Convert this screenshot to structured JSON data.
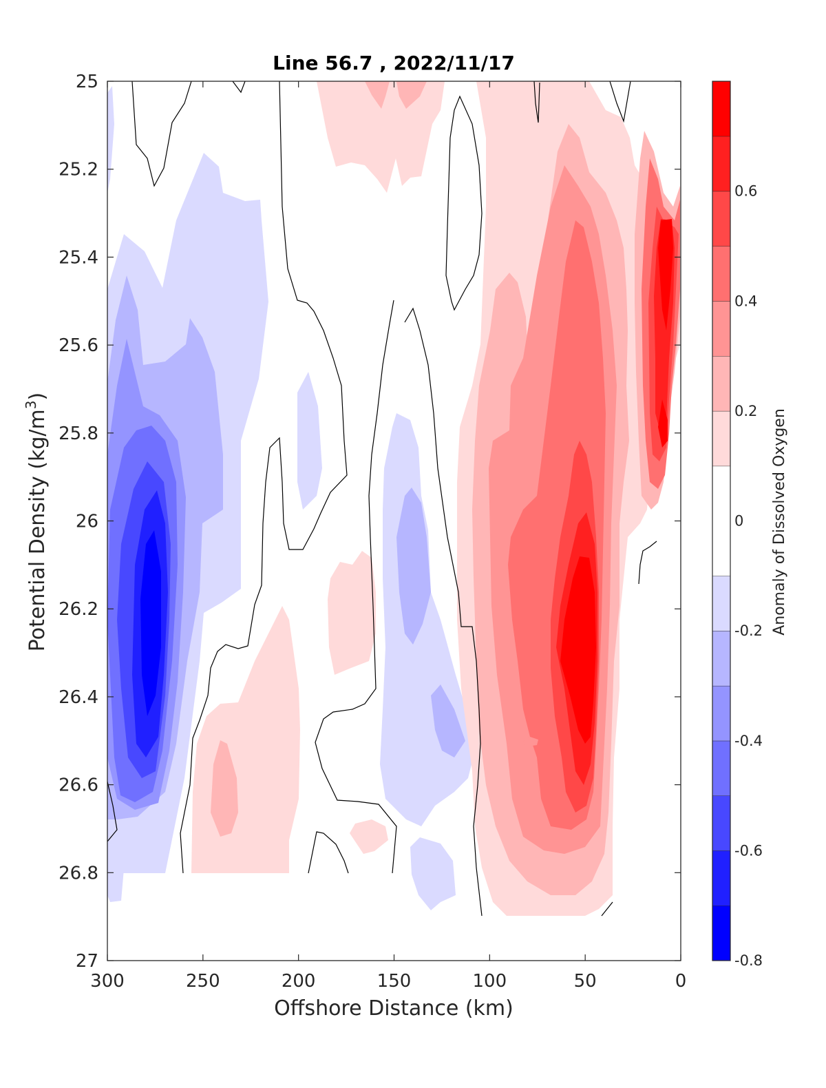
{
  "chart_data": {
    "type": "heatmap",
    "subtype": "filled-contour",
    "title": "Line 56.7 , 2022/11/17",
    "xlabel": "Offshore Distance (km)",
    "ylabel": "Potential Density (kg/m",
    "ylabel_sup": "3",
    "ylabel_close": ")",
    "colorbar_label": "Anomaly of Dissolved Oxygen",
    "xlim": [
      300,
      0
    ],
    "ylim": [
      25,
      27
    ],
    "x_reversed": true,
    "y_reversed": true,
    "x_ticks": [
      "300",
      "250",
      "200",
      "150",
      "100",
      "50",
      "0"
    ],
    "y_ticks": [
      "25",
      "25.2",
      "25.4",
      "25.6",
      "25.8",
      "26",
      "26.2",
      "26.4",
      "26.6",
      "26.8",
      "27"
    ],
    "colorbar_range": [
      -0.8,
      0.8
    ],
    "colorbar_ticks": [
      "0.6",
      "0.4",
      "0.2",
      "0",
      "-0.2",
      "-0.4",
      "-0.6",
      "-0.8"
    ],
    "colorbar_levels": [
      {
        "from": -0.8,
        "to": -0.7,
        "color": "#0000ff"
      },
      {
        "from": -0.7,
        "to": -0.6,
        "color": "#2020ff"
      },
      {
        "from": -0.6,
        "to": -0.5,
        "color": "#4848ff"
      },
      {
        "from": -0.5,
        "to": -0.4,
        "color": "#7070ff"
      },
      {
        "from": -0.4,
        "to": -0.3,
        "color": "#9494ff"
      },
      {
        "from": -0.3,
        "to": -0.2,
        "color": "#b6b6ff"
      },
      {
        "from": -0.2,
        "to": -0.1,
        "color": "#dadaff"
      },
      {
        "from": -0.1,
        "to": 0.1,
        "color": "#ffffff"
      },
      {
        "from": 0.1,
        "to": 0.2,
        "color": "#ffdada"
      },
      {
        "from": 0.2,
        "to": 0.3,
        "color": "#ffb6b6"
      },
      {
        "from": 0.3,
        "to": 0.4,
        "color": "#ff9494"
      },
      {
        "from": 0.4,
        "to": 0.5,
        "color": "#ff7070"
      },
      {
        "from": 0.5,
        "to": 0.6,
        "color": "#ff4848"
      },
      {
        "from": 0.6,
        "to": 0.7,
        "color": "#ff2020"
      },
      {
        "from": 0.7,
        "to": 0.8,
        "color": "#ff0000"
      }
    ],
    "data_extent": {
      "density_max_offshore": 26.8,
      "density_max_nearshore": 26.9
    },
    "features": [
      {
        "name": "offshore-low-oxygen-core",
        "x_range": [
          290,
          265
        ],
        "density_range": [
          26.0,
          26.5
        ],
        "min_anomaly": -0.65
      },
      {
        "name": "mid-section-low-oxygen",
        "x_range": [
          150,
          120
        ],
        "density_range": [
          25.85,
          26.55
        ],
        "min_anomaly": -0.35
      },
      {
        "name": "nearshore-high-oxygen-core",
        "x_range": [
          60,
          38
        ],
        "density_range": [
          26.05,
          26.5
        ],
        "max_anomaly": 0.75
      },
      {
        "name": "shelf-surface-high-oxygen",
        "x_range": [
          18,
          2
        ],
        "density_range": [
          25.3,
          25.9
        ],
        "max_anomaly": 0.75
      }
    ],
    "grid": false,
    "legend": "colorbar-right"
  },
  "colors": {
    "contour_zero_line": "#000000",
    "axis": "#262626",
    "background": "#ffffff"
  }
}
